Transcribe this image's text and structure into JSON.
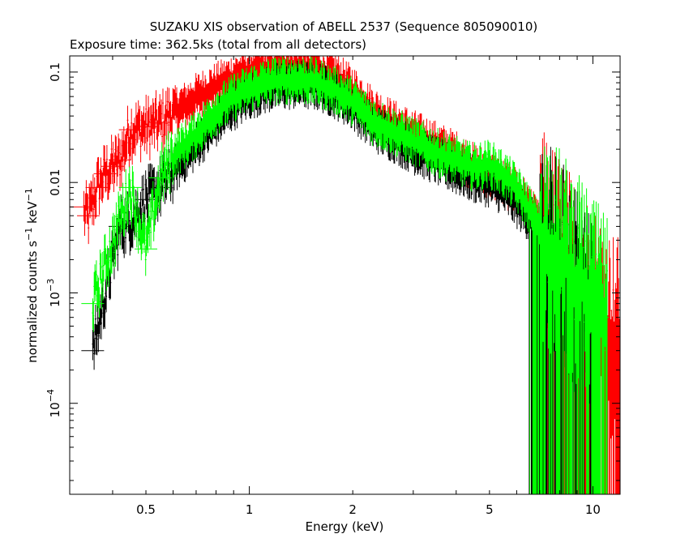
{
  "chart_data": {
    "type": "scatter",
    "title": "SUZAKU XIS observation of ABELL 2537 (Sequence 805090010)",
    "subtitle": "Exposure time: 362.5ks (total from all detectors)",
    "xlabel": "Energy (keV)",
    "ylabel_main": "normalized counts s",
    "ylabel_sup1": "−1",
    "ylabel_mid": " keV",
    "ylabel_sup2": "−1",
    "x_scale": "log",
    "y_scale": "log",
    "xlim": [
      0.3,
      12
    ],
    "ylim": [
      1.5e-05,
      0.14
    ],
    "x_ticks": [
      {
        "value": 0.5,
        "label": "0.5"
      },
      {
        "value": 1,
        "label": "1"
      },
      {
        "value": 2,
        "label": "2"
      },
      {
        "value": 5,
        "label": "5"
      },
      {
        "value": 10,
        "label": "10"
      }
    ],
    "y_ticks": [
      {
        "value": 0.1,
        "label": "0.1"
      },
      {
        "value": 0.01,
        "label": "0.01"
      },
      {
        "value": 0.001,
        "base": "10",
        "exp": "−3"
      },
      {
        "value": 0.0001,
        "base": "10",
        "exp": "−4"
      }
    ],
    "grid": false,
    "legend": "none",
    "series": [
      {
        "color": "#ff0000",
        "points": [
          [
            0.32,
            0.006
          ],
          [
            0.34,
            0.005
          ],
          [
            0.36,
            0.009
          ],
          [
            0.38,
            0.012
          ],
          [
            0.4,
            0.014
          ],
          [
            0.42,
            0.016
          ],
          [
            0.45,
            0.03
          ],
          [
            0.5,
            0.032
          ],
          [
            0.55,
            0.035
          ],
          [
            0.6,
            0.045
          ],
          [
            0.65,
            0.05
          ],
          [
            0.7,
            0.06
          ],
          [
            0.8,
            0.075
          ],
          [
            0.9,
            0.09
          ],
          [
            1.0,
            0.105
          ],
          [
            1.1,
            0.11
          ],
          [
            1.2,
            0.115
          ],
          [
            1.4,
            0.115
          ],
          [
            1.6,
            0.105
          ],
          [
            1.8,
            0.09
          ],
          [
            2.0,
            0.07
          ],
          [
            2.3,
            0.045
          ],
          [
            2.6,
            0.035
          ],
          [
            3.0,
            0.028
          ],
          [
            3.5,
            0.022
          ],
          [
            4.0,
            0.018
          ],
          [
            4.5,
            0.014
          ],
          [
            5.0,
            0.012
          ],
          [
            5.5,
            0.01
          ],
          [
            6.0,
            0.0085
          ],
          [
            6.5,
            0.006
          ],
          [
            7.0,
            0.004
          ],
          [
            8.0,
            0.0022
          ],
          [
            9.0,
            0.0012
          ],
          [
            10.0,
            0.0008
          ],
          [
            11.0,
            0.0005
          ],
          [
            12.0,
            0.0004
          ]
        ]
      },
      {
        "color": "#000000",
        "points": [
          [
            0.35,
            0.0003
          ],
          [
            0.42,
            0.004
          ],
          [
            0.45,
            0.0045
          ],
          [
            0.5,
            0.007
          ],
          [
            0.55,
            0.009
          ],
          [
            0.6,
            0.013
          ],
          [
            0.7,
            0.022
          ],
          [
            0.8,
            0.035
          ],
          [
            0.9,
            0.05
          ],
          [
            1.0,
            0.062
          ],
          [
            1.1,
            0.07
          ],
          [
            1.2,
            0.075
          ],
          [
            1.4,
            0.078
          ],
          [
            1.6,
            0.075
          ],
          [
            1.8,
            0.062
          ],
          [
            2.0,
            0.05
          ],
          [
            2.3,
            0.032
          ],
          [
            2.6,
            0.026
          ],
          [
            3.0,
            0.02
          ],
          [
            3.5,
            0.016
          ],
          [
            4.0,
            0.013
          ],
          [
            4.5,
            0.011
          ],
          [
            5.0,
            0.01
          ],
          [
            5.5,
            0.0085
          ],
          [
            6.0,
            0.0065
          ],
          [
            6.5,
            0.005
          ],
          [
            7.0,
            0.0035
          ],
          [
            8.0,
            0.002
          ],
          [
            9.0,
            0.0012
          ],
          [
            10.0,
            0.0007
          ]
        ]
      },
      {
        "color": "#00ff00",
        "points": [
          [
            0.35,
            0.0008
          ],
          [
            0.45,
            0.009
          ],
          [
            0.5,
            0.0025
          ],
          [
            0.55,
            0.011
          ],
          [
            0.6,
            0.018
          ],
          [
            0.7,
            0.028
          ],
          [
            0.8,
            0.045
          ],
          [
            0.9,
            0.06
          ],
          [
            1.0,
            0.072
          ],
          [
            1.1,
            0.08
          ],
          [
            1.2,
            0.085
          ],
          [
            1.4,
            0.088
          ],
          [
            1.6,
            0.08
          ],
          [
            1.8,
            0.068
          ],
          [
            2.0,
            0.055
          ],
          [
            2.3,
            0.036
          ],
          [
            2.6,
            0.03
          ],
          [
            3.0,
            0.024
          ],
          [
            3.5,
            0.019
          ],
          [
            4.0,
            0.016
          ],
          [
            4.5,
            0.014
          ],
          [
            5.0,
            0.015
          ],
          [
            5.5,
            0.012
          ],
          [
            6.0,
            0.009
          ],
          [
            6.5,
            0.006
          ],
          [
            7.0,
            0.004
          ],
          [
            8.0,
            0.0025
          ],
          [
            9.0,
            0.0015
          ],
          [
            10.0,
            0.0009
          ],
          [
            11.0,
            0.0006
          ]
        ]
      }
    ]
  }
}
